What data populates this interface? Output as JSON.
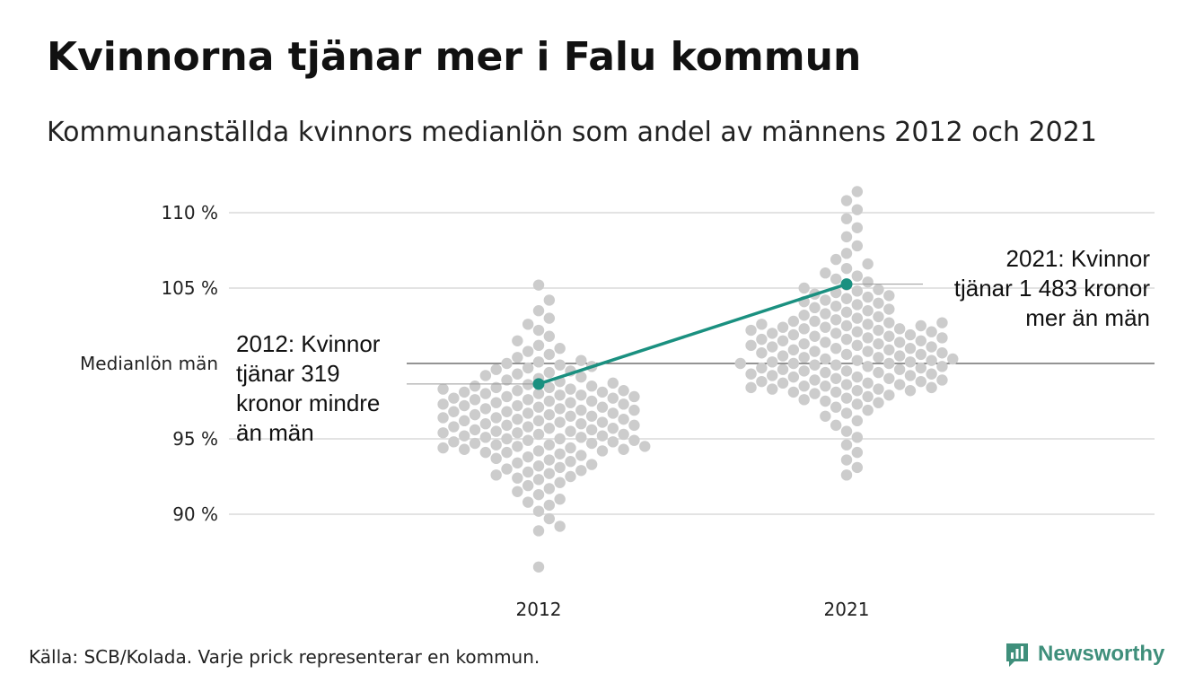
{
  "title": "Kvinnorna tjänar mer i Falu kommun",
  "subtitle": "Kommunanställda kvinnors medianlön som andel av männens 2012 och 2021",
  "source": "Källa: SCB/Kolada. Varje prick representerar en kommun.",
  "brand": "Newsworthy",
  "colors": {
    "dot": "#cccccc",
    "highlight": "#1a9080",
    "grid": "#e3e3e3",
    "reference_line": "#555555",
    "brand": "#3f8f7b"
  },
  "chart_data": {
    "type": "scatter",
    "categories": [
      "2012",
      "2021"
    ],
    "y_ticks": [
      {
        "value": 90,
        "label": "90 %"
      },
      {
        "value": 95,
        "label": "95 %"
      },
      {
        "value": 105,
        "label": "105 %"
      },
      {
        "value": 110,
        "label": "110 %"
      }
    ],
    "ylim": [
      86,
      112
    ],
    "reference_line": {
      "value": 100,
      "label": "Medianlön män"
    },
    "series": [
      {
        "category": "2012",
        "values": [
          86.5,
          88.9,
          89.2,
          89.7,
          90.2,
          90.6,
          90.8,
          91.0,
          91.3,
          91.5,
          91.7,
          91.9,
          92.1,
          92.3,
          92.4,
          92.5,
          92.6,
          92.7,
          92.8,
          92.9,
          93.0,
          93.1,
          93.2,
          93.3,
          93.4,
          93.5,
          93.6,
          93.7,
          93.8,
          93.9,
          94.0,
          94.1,
          94.1,
          94.2,
          94.2,
          94.3,
          94.3,
          94.4,
          94.4,
          94.5,
          94.5,
          94.6,
          94.6,
          94.7,
          94.7,
          94.8,
          94.8,
          94.9,
          94.9,
          95.0,
          95.0,
          95.1,
          95.1,
          95.2,
          95.2,
          95.3,
          95.3,
          95.4,
          95.4,
          95.5,
          95.5,
          95.6,
          95.6,
          95.7,
          95.7,
          95.8,
          95.8,
          95.9,
          95.9,
          96.0,
          96.0,
          96.1,
          96.1,
          96.2,
          96.2,
          96.3,
          96.3,
          96.4,
          96.4,
          96.5,
          96.5,
          96.6,
          96.6,
          96.7,
          96.7,
          96.8,
          96.8,
          96.9,
          96.9,
          97.0,
          97.0,
          97.1,
          97.1,
          97.2,
          97.2,
          97.3,
          97.3,
          97.4,
          97.4,
          97.5,
          97.5,
          97.6,
          97.6,
          97.7,
          97.7,
          97.8,
          97.8,
          97.9,
          97.9,
          98.0,
          98.0,
          98.1,
          98.1,
          98.2,
          98.2,
          98.3,
          98.3,
          98.4,
          98.4,
          98.5,
          98.5,
          98.6,
          98.7,
          98.8,
          98.9,
          99.0,
          99.1,
          99.2,
          99.3,
          99.4,
          99.5,
          99.6,
          99.7,
          99.8,
          99.9,
          100.0,
          100.1,
          100.2,
          100.4,
          100.6,
          100.8,
          101.0,
          101.2,
          101.5,
          101.8,
          102.2,
          102.6,
          103.0,
          103.5,
          104.2,
          105.2
        ],
        "highlight": {
          "value": 98.64,
          "label_lines": [
            "2012: Kvinnor",
            "tjänar 319",
            "kronor mindre",
            "än män"
          ]
        }
      },
      {
        "category": "2021",
        "values": [
          92.6,
          93.1,
          93.6,
          94.1,
          94.6,
          95.1,
          95.5,
          95.9,
          96.2,
          96.5,
          96.7,
          96.9,
          97.1,
          97.3,
          97.4,
          97.5,
          97.6,
          97.7,
          97.8,
          97.9,
          98.0,
          98.1,
          98.1,
          98.2,
          98.2,
          98.3,
          98.3,
          98.4,
          98.4,
          98.5,
          98.5,
          98.6,
          98.6,
          98.7,
          98.7,
          98.8,
          98.8,
          98.9,
          98.9,
          99.0,
          99.0,
          99.1,
          99.1,
          99.2,
          99.2,
          99.3,
          99.3,
          99.4,
          99.4,
          99.5,
          99.5,
          99.6,
          99.6,
          99.7,
          99.7,
          99.8,
          99.8,
          99.9,
          99.9,
          100.0,
          100.0,
          100.0,
          100.1,
          100.1,
          100.2,
          100.2,
          100.3,
          100.3,
          100.4,
          100.4,
          100.5,
          100.5,
          100.6,
          100.6,
          100.7,
          100.7,
          100.8,
          100.8,
          100.9,
          100.9,
          101.0,
          101.0,
          101.1,
          101.1,
          101.2,
          101.2,
          101.3,
          101.3,
          101.4,
          101.4,
          101.5,
          101.5,
          101.6,
          101.6,
          101.7,
          101.7,
          101.8,
          101.8,
          101.9,
          101.9,
          102.0,
          102.0,
          102.1,
          102.1,
          102.2,
          102.2,
          102.3,
          102.3,
          102.4,
          102.4,
          102.5,
          102.5,
          102.6,
          102.6,
          102.7,
          102.7,
          102.8,
          102.8,
          102.9,
          103.0,
          103.1,
          103.2,
          103.3,
          103.4,
          103.5,
          103.6,
          103.7,
          103.8,
          103.9,
          104.0,
          104.1,
          104.2,
          104.3,
          104.4,
          104.5,
          104.6,
          104.7,
          104.8,
          104.9,
          105.0,
          105.2,
          105.4,
          105.6,
          105.8,
          106.0,
          106.3,
          106.6,
          106.9,
          107.3,
          107.8,
          108.4,
          109.0,
          109.6,
          110.2,
          110.8,
          111.4
        ],
        "highlight": {
          "value": 105.26,
          "label_lines": [
            "2021: Kvinnor",
            "tjänar 1 483 kronor",
            "mer än män"
          ]
        }
      }
    ]
  }
}
